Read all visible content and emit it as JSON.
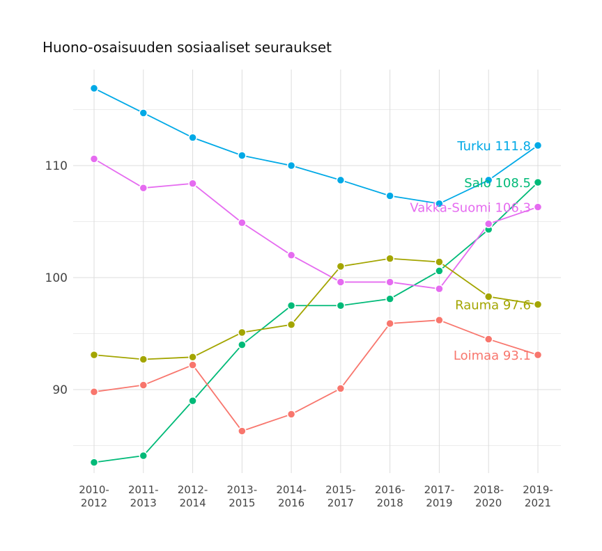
{
  "chart_data": {
    "type": "line",
    "title": "Huono-osaisuuden sosiaaliset seuraukset",
    "xlabel": "",
    "ylabel": "",
    "categories": [
      "2010-2012",
      "2011-2013",
      "2012-2014",
      "2013-2015",
      "2014-2016",
      "2015-2017",
      "2016-2018",
      "2017-2019",
      "2018-2020",
      "2019-2021"
    ],
    "yticks": [
      90,
      100,
      110
    ],
    "ylim": [
      82.5,
      117.5
    ],
    "grid": true,
    "legend": "direct labels at line ends",
    "series": [
      {
        "name": "Turku",
        "end_label": "Turku 111.8",
        "color": "#00A9E6",
        "values": [
          116.9,
          114.7,
          112.5,
          110.9,
          110.0,
          108.7,
          107.3,
          106.6,
          108.7,
          111.8
        ]
      },
      {
        "name": "Salo",
        "end_label": "Salo 108.5",
        "color": "#00BA78",
        "values": [
          83.5,
          84.1,
          89.0,
          94.0,
          97.5,
          97.5,
          98.1,
          100.6,
          104.3,
          108.5
        ]
      },
      {
        "name": "Vakka-Suomi",
        "end_label": "Vakka-Suomi 106.3",
        "color": "#E56BF0",
        "values": [
          110.6,
          108.0,
          108.4,
          104.9,
          102.0,
          99.6,
          99.6,
          99.0,
          104.8,
          106.3
        ]
      },
      {
        "name": "Rauma",
        "end_label": "Rauma 97.6",
        "color": "#A3A500",
        "values": [
          93.1,
          92.7,
          92.9,
          95.1,
          95.8,
          101.0,
          101.7,
          101.4,
          98.3,
          97.6
        ]
      },
      {
        "name": "Loimaa",
        "end_label": "Loimaa 93.1",
        "color": "#F8766D",
        "values": [
          89.8,
          90.4,
          92.2,
          86.3,
          87.8,
          90.1,
          95.9,
          96.2,
          94.5,
          93.1
        ]
      }
    ]
  }
}
